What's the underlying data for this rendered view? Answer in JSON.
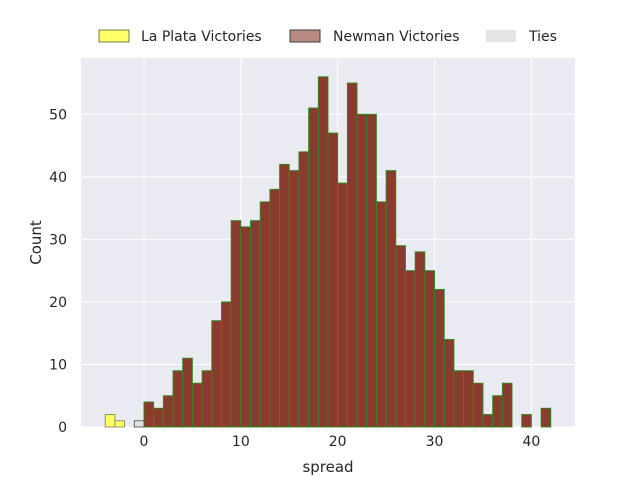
{
  "chart_data": {
    "type": "bar",
    "xlabel": "spread",
    "ylabel": "Count",
    "xlim": [
      -6.5,
      44.5
    ],
    "ylim": [
      0,
      59
    ],
    "xticks": [
      0,
      10,
      20,
      30,
      40
    ],
    "yticks": [
      0,
      10,
      20,
      30,
      40,
      50
    ],
    "bin_width": 1,
    "grid": true,
    "legend_position": "top",
    "series": [
      {
        "name": "La Plata Victories",
        "fill": "#ffff66",
        "stroke": "#8a8a55",
        "bins": [
          {
            "start": -4,
            "count": 2
          },
          {
            "start": -3,
            "count": 1
          }
        ]
      },
      {
        "name": "Newman Victories",
        "fill": "#8b3a2e",
        "stroke": "#2e8b1e",
        "bins": [
          {
            "start": 0,
            "count": 4
          },
          {
            "start": 1,
            "count": 3
          },
          {
            "start": 2,
            "count": 5
          },
          {
            "start": 3,
            "count": 9
          },
          {
            "start": 4,
            "count": 11
          },
          {
            "start": 5,
            "count": 7
          },
          {
            "start": 6,
            "count": 9
          },
          {
            "start": 7,
            "count": 17
          },
          {
            "start": 8,
            "count": 20
          },
          {
            "start": 9,
            "count": 33
          },
          {
            "start": 10,
            "count": 32
          },
          {
            "start": 11,
            "count": 33
          },
          {
            "start": 12,
            "count": 36
          },
          {
            "start": 13,
            "count": 38
          },
          {
            "start": 14,
            "count": 42
          },
          {
            "start": 15,
            "count": 41
          },
          {
            "start": 16,
            "count": 44
          },
          {
            "start": 17,
            "count": 51
          },
          {
            "start": 18,
            "count": 56
          },
          {
            "start": 19,
            "count": 47
          },
          {
            "start": 20,
            "count": 39
          },
          {
            "start": 21,
            "count": 55
          },
          {
            "start": 22,
            "count": 50
          },
          {
            "start": 23,
            "count": 50
          },
          {
            "start": 24,
            "count": 36
          },
          {
            "start": 25,
            "count": 41
          },
          {
            "start": 26,
            "count": 29
          },
          {
            "start": 27,
            "count": 25
          },
          {
            "start": 28,
            "count": 28
          },
          {
            "start": 29,
            "count": 25
          },
          {
            "start": 30,
            "count": 22
          },
          {
            "start": 31,
            "count": 14
          },
          {
            "start": 32,
            "count": 9
          },
          {
            "start": 33,
            "count": 9
          },
          {
            "start": 34,
            "count": 7
          },
          {
            "start": 35,
            "count": 2
          },
          {
            "start": 36,
            "count": 5
          },
          {
            "start": 37,
            "count": 7
          },
          {
            "start": 39,
            "count": 2
          },
          {
            "start": 41,
            "count": 3
          }
        ]
      },
      {
        "name": "Ties",
        "fill": "#e4e4e4",
        "stroke": "#555555",
        "bins": [
          {
            "start": -1,
            "count": 1
          }
        ]
      }
    ],
    "background_color": "#eaeaf2",
    "grid_color": "#ffffff"
  }
}
